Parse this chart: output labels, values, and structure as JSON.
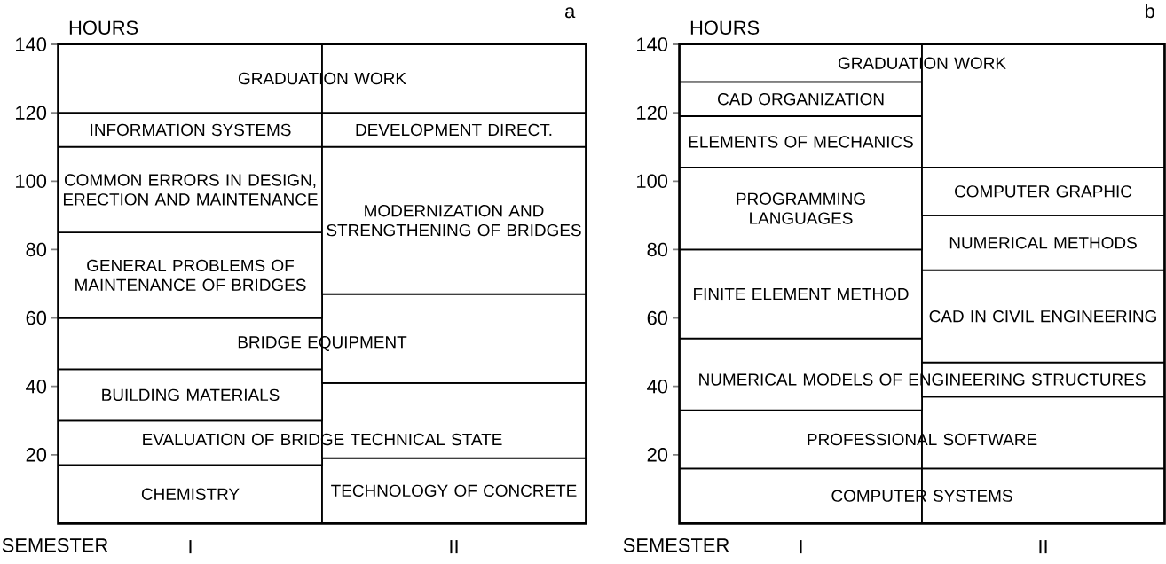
{
  "chart_data": [
    {
      "type": "bar",
      "stacked": true,
      "title": "a",
      "xlabel": "SEMESTER",
      "ylabel": "HOURS",
      "categories": [
        "I",
        "II"
      ],
      "color": "#ffffff",
      "ylim": [
        0,
        140
      ],
      "yticks": [
        20,
        40,
        60,
        80,
        100,
        120,
        140
      ],
      "series": [
        {
          "name": "CHEMISTRY",
          "values": [
            17,
            null
          ]
        },
        {
          "name": "TECHNOLOGY OF CONCRETE",
          "values": [
            null,
            19
          ]
        },
        {
          "name": "EVALUATION OF BRIDGE TECHNICAL STATE",
          "values": [
            13,
            22
          ]
        },
        {
          "name": "BUILDING MATERIALS",
          "values": [
            15,
            null
          ]
        },
        {
          "name": "BRIDGE EQUIPMENT",
          "values": [
            15,
            26
          ]
        },
        {
          "name": "GENERAL PROBLEMS OF MAINTENANCE OF BRIDGES",
          "values": [
            25,
            null
          ]
        },
        {
          "name": "COMMON ERRORS IN DESIGN, ERECTION AND MAINTENANCE",
          "values": [
            25,
            null
          ]
        },
        {
          "name": "MODERNIZATION AND STRENGTHENING OF BRIDGES",
          "values": [
            null,
            43
          ]
        },
        {
          "name": "INFORMATION SYSTEMS",
          "values": [
            10,
            null
          ]
        },
        {
          "name": "DEVELOPMENT DIRECT.",
          "values": [
            null,
            10
          ]
        },
        {
          "name": "GRADUATION WORK",
          "values": [
            20,
            20
          ]
        }
      ]
    },
    {
      "type": "bar",
      "stacked": true,
      "title": "b",
      "xlabel": "SEMESTER",
      "ylabel": "HOURS",
      "categories": [
        "I",
        "II"
      ],
      "color": "#ffffff",
      "ylim": [
        0,
        140
      ],
      "yticks": [
        20,
        40,
        60,
        80,
        100,
        120,
        140
      ],
      "series": [
        {
          "name": "COMPUTER SYSTEMS",
          "values": [
            16,
            16
          ]
        },
        {
          "name": "PROFESSIONAL SOFTWARE",
          "values": [
            17,
            21
          ]
        },
        {
          "name": "NUMERICAL MODELS OF ENGINEERING STRUCTURES",
          "values": [
            21,
            10
          ]
        },
        {
          "name": "FINITE ELEMENT METHOD",
          "values": [
            26,
            null
          ]
        },
        {
          "name": "CAD IN CIVIL ENGINEERING",
          "values": [
            null,
            27
          ]
        },
        {
          "name": "NUMERICAL METHODS",
          "values": [
            null,
            16
          ]
        },
        {
          "name": "PROGRAMMING LANGUAGES",
          "values": [
            24,
            null
          ]
        },
        {
          "name": "COMPUTER GRAPHIC",
          "values": [
            null,
            14
          ]
        },
        {
          "name": "ELEMENTS OF MECHANICS",
          "values": [
            15,
            null
          ]
        },
        {
          "name": "CAD ORGANIZATION",
          "values": [
            10,
            null
          ]
        },
        {
          "name": "GRADUATION WORK",
          "values": [
            11,
            36
          ]
        }
      ]
    }
  ]
}
